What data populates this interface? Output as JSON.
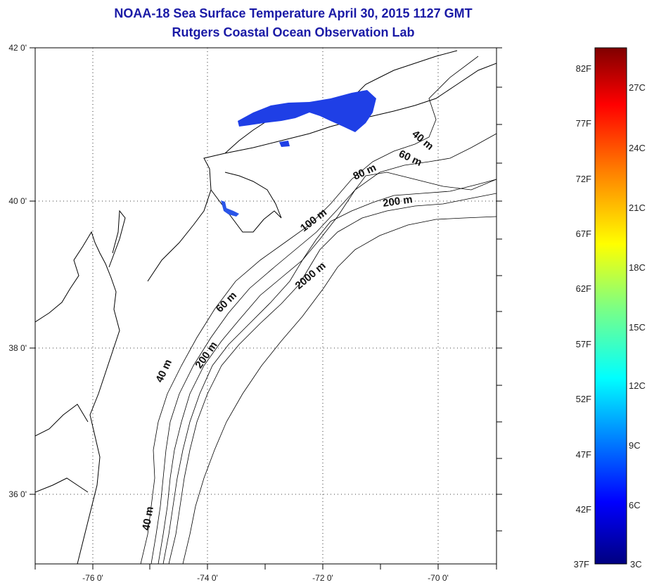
{
  "title": {
    "line1": "NOAA-18 Sea Surface Temperature April 30, 2015 1127 GMT",
    "line2": "Rutgers Coastal Ocean Observation Lab"
  },
  "map": {
    "lat_labels": [
      "42 0'",
      "40 0'",
      "38 0'",
      "36 0'"
    ],
    "lon_labels": [
      "-76 0'",
      "-74 0'",
      "-72 0'",
      "-70 0'"
    ],
    "lat_range": [
      35,
      42
    ],
    "lon_range": [
      -77,
      -69
    ],
    "grid": "dotted",
    "contour_labels": [
      "40 m",
      "60 m",
      "80 m",
      "200 m",
      "100 m",
      "2000 m",
      "60 m",
      "40 m",
      "200 m",
      "40 m"
    ],
    "sst_patch_color": "#1f3fe6",
    "land_outline_color": "#000000"
  },
  "colorbar": {
    "fahrenheit_labels": [
      "82F",
      "77F",
      "72F",
      "67F",
      "62F",
      "57F",
      "52F",
      "47F",
      "42F",
      "37F"
    ],
    "celsius_labels": [
      "27C",
      "24C",
      "21C",
      "18C",
      "15C",
      "12C",
      "9C",
      "6C",
      "3C"
    ],
    "range_c": [
      3,
      28.5
    ],
    "colors": [
      "#000080",
      "#0000ff",
      "#0080ff",
      "#00ffff",
      "#80ff80",
      "#ffff00",
      "#ff8000",
      "#ff0000",
      "#800000"
    ]
  }
}
